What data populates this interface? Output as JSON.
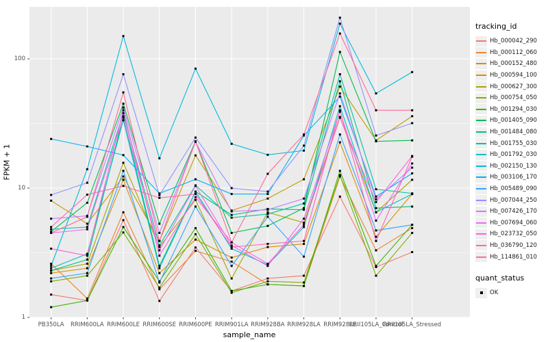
{
  "chart_data": {
    "type": "line",
    "xlabel": "sample_name",
    "ylabel": "FPKM + 1",
    "yscale": "log10",
    "ylim": [
      1,
      250
    ],
    "yticks": [
      1,
      10,
      100
    ],
    "yminor": [
      3.1623,
      31.623
    ],
    "grid": "on",
    "legend_position": "right",
    "legend_title": "tracking_id",
    "quant_legend_title": "quant_status",
    "quant_legend_items": [
      "OK"
    ],
    "marker": "black-square",
    "panel_bg": "#ebebeb",
    "grid_color": "#ffffff",
    "categories": [
      "PB350LA",
      "RRIM600LA",
      "RRIM600LE",
      "RRIM600SE",
      "RRIM600PE",
      "RRIM901LA",
      "RRIM928BA",
      "RRIM928LA",
      "RRIM928LE",
      "RRII105LA_Control",
      "RRII105LA_Stressed"
    ],
    "series": [
      {
        "name": "Hb_000042_290",
        "color": "#F8766D",
        "values": [
          1.5,
          1.35,
          5.65,
          1.34,
          3.47,
          1.6,
          2.0,
          2.1,
          8.6,
          2.45,
          3.2
        ]
      },
      {
        "name": "Hb_000112_060",
        "color": "#EA8331",
        "values": [
          2.6,
          1.4,
          6.5,
          1.65,
          3.27,
          2.7,
          1.8,
          1.75,
          12.3,
          3.3,
          4.9
        ]
      },
      {
        "name": "Hb_000152_480",
        "color": "#D89000",
        "values": [
          2.2,
          2.4,
          11.6,
          2.2,
          4.0,
          2.9,
          3.5,
          3.7,
          22.6,
          4.2,
          9.0
        ]
      },
      {
        "name": "Hb_000594_100",
        "color": "#C09B00",
        "values": [
          8.0,
          5.3,
          12.3,
          3.9,
          17.9,
          6.7,
          8.3,
          11.7,
          61,
          23.4,
          36
        ]
      },
      {
        "name": "Hb_000627_300",
        "color": "#A3A500",
        "values": [
          2.3,
          2.6,
          15.7,
          3.5,
          8.1,
          2.0,
          6.5,
          5.4,
          35.5,
          6.5,
          11.6
        ]
      },
      {
        "name": "Hb_000754_050",
        "color": "#7CAE00",
        "values": [
          1.9,
          2.1,
          4.54,
          1.7,
          4.4,
          1.55,
          1.9,
          1.86,
          12.6,
          2.1,
          4.5
        ]
      },
      {
        "name": "Hb_001294_030",
        "color": "#39B600",
        "values": [
          1.2,
          1.35,
          5.0,
          1.9,
          4.9,
          1.6,
          1.8,
          1.75,
          13.6,
          2.5,
          5.2
        ]
      },
      {
        "name": "Hb_001405_090",
        "color": "#00BB4E",
        "values": [
          4.6,
          7.7,
          45,
          5.3,
          23,
          4.5,
          5.1,
          7.0,
          113,
          23,
          23.4
        ]
      },
      {
        "name": "Hb_001484_080",
        "color": "#00BF7D",
        "values": [
          2.3,
          2.8,
          36,
          2.5,
          9.4,
          6.2,
          6.9,
          6.8,
          67,
          7.0,
          7.2
        ]
      },
      {
        "name": "Hb_001755_030",
        "color": "#00C1A3",
        "values": [
          4.8,
          5.0,
          38,
          3.6,
          10.5,
          5.9,
          6.3,
          7.6,
          76,
          9.8,
          9.1
        ]
      },
      {
        "name": "Hb_001792_030",
        "color": "#00BFC4",
        "values": [
          2.4,
          3.1,
          33.5,
          2.4,
          9.4,
          3.4,
          2.55,
          5.0,
          43,
          6.5,
          9.0
        ]
      },
      {
        "name": "Hb_002150_130",
        "color": "#00BAE0",
        "values": [
          2.5,
          14,
          150,
          17,
          84,
          22,
          18.1,
          19.5,
          187,
          54,
          79
        ]
      },
      {
        "name": "Hb_003106_170",
        "color": "#00B0F6",
        "values": [
          24,
          21,
          18,
          9.1,
          11.7,
          9.0,
          9.0,
          25.5,
          51,
          8.6,
          13
        ]
      },
      {
        "name": "Hb_005489_090",
        "color": "#35A2FF",
        "values": [
          2.0,
          2.2,
          13.6,
          1.86,
          7.2,
          2.5,
          6.0,
          2.95,
          26,
          4.7,
          5.2
        ]
      },
      {
        "name": "Hb_007044_250",
        "color": "#9590FF",
        "values": [
          8.85,
          11,
          76,
          8.8,
          24.6,
          10,
          9.4,
          21.3,
          208,
          25.5,
          31.8
        ]
      },
      {
        "name": "Hb_007426_170",
        "color": "#C77CFF",
        "values": [
          5.8,
          6.1,
          42,
          4.5,
          22.8,
          6.6,
          6.8,
          8.3,
          54,
          8.2,
          14.4
        ]
      },
      {
        "name": "Hb_007694_060",
        "color": "#E76BF3",
        "values": [
          4.5,
          4.8,
          35,
          3.3,
          10.4,
          3.6,
          2.5,
          5.8,
          39,
          5.6,
          15.5
        ]
      },
      {
        "name": "Hb_023732_050",
        "color": "#FA62DB",
        "values": [
          3.4,
          3.0,
          40,
          3.0,
          8.5,
          3.8,
          2.6,
          5.2,
          35,
          7.8,
          17.7
        ]
      },
      {
        "name": "Hb_036790_120",
        "color": "#FF62BC",
        "values": [
          5.0,
          8.9,
          10.4,
          8.4,
          9.0,
          3.5,
          3.7,
          3.9,
          40,
          3.9,
          17.5
        ]
      },
      {
        "name": "Hb_114861_010",
        "color": "#FF6A98",
        "values": [
          4.5,
          6.0,
          55,
          3.9,
          23,
          3.8,
          12.9,
          26,
          157,
          40,
          40
        ]
      }
    ]
  }
}
